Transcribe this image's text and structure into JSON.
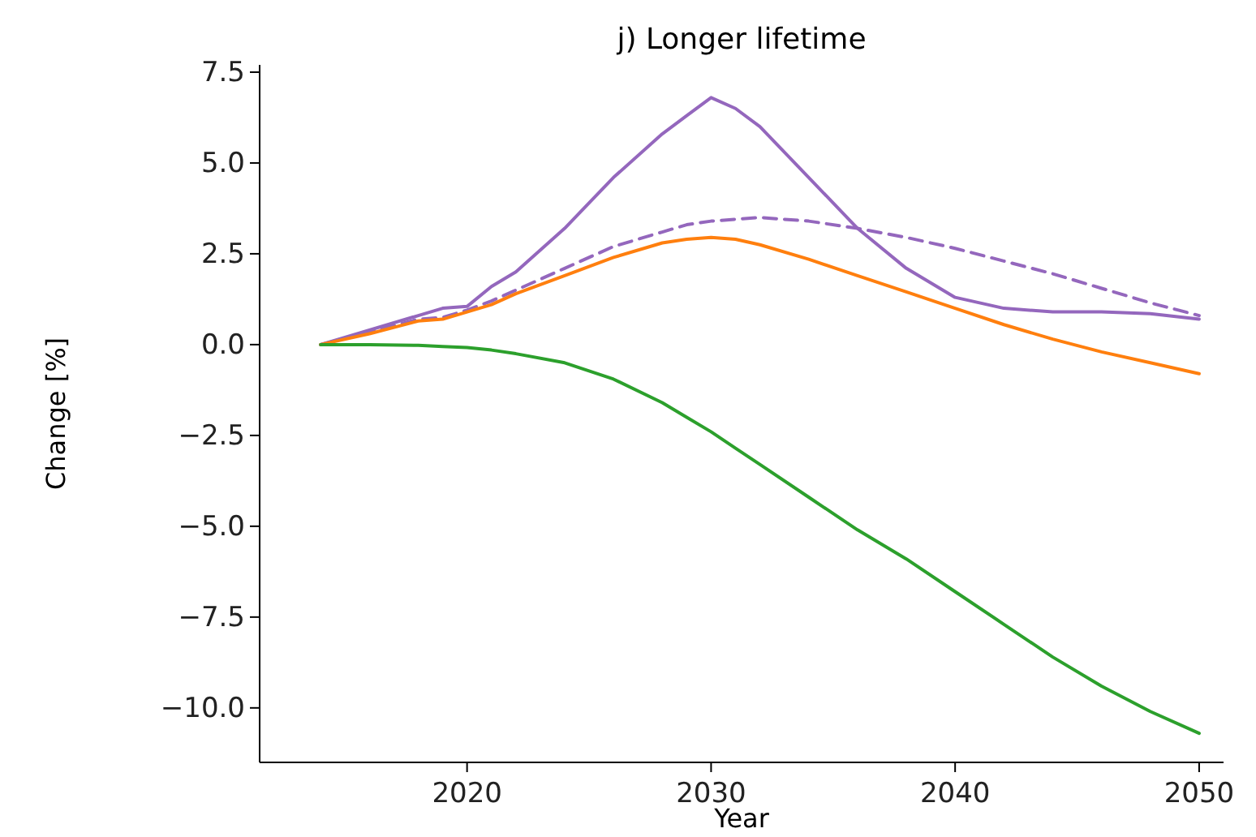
{
  "chart_data": {
    "type": "line",
    "title": "j) Longer lifetime",
    "xlabel": "Year",
    "ylabel": "Change [%]",
    "xlim": [
      2011.5,
      2051
    ],
    "ylim": [
      -11.5,
      7.7
    ],
    "xticks": [
      2020,
      2030,
      2040,
      2050
    ],
    "yticks": [
      {
        "value": 7.5,
        "label": "7.5"
      },
      {
        "value": 5,
        "label": "5.0"
      },
      {
        "value": 2.5,
        "label": "2.5"
      },
      {
        "value": 0,
        "label": "0.0"
      },
      {
        "value": -2.5,
        "label": "−2.5"
      },
      {
        "value": -5,
        "label": "−5.0"
      },
      {
        "value": -7.5,
        "label": "−7.5"
      },
      {
        "value": -10,
        "label": "−10.0"
      }
    ],
    "grid": false,
    "x": [
      2014,
      2016,
      2018,
      2019,
      2020,
      2021,
      2022,
      2024,
      2026,
      2028,
      2029,
      2030,
      2031,
      2032,
      2034,
      2036,
      2038,
      2040,
      2042,
      2044,
      2046,
      2048,
      2050
    ],
    "series": [
      {
        "color": "#9467bd",
        "line_style": "solid",
        "values": [
          0,
          0.4,
          0.8,
          1.0,
          1.05,
          1.6,
          2.0,
          3.2,
          4.6,
          5.8,
          6.3,
          6.8,
          6.5,
          6.0,
          4.6,
          3.2,
          2.1,
          1.3,
          1.0,
          0.9,
          0.9,
          0.85,
          0.7
        ]
      },
      {
        "color": "#9467bd",
        "line_style": "dashed",
        "values": [
          0,
          0.35,
          0.7,
          0.75,
          0.95,
          1.2,
          1.5,
          2.1,
          2.7,
          3.1,
          3.3,
          3.4,
          3.45,
          3.5,
          3.4,
          3.2,
          2.95,
          2.65,
          2.3,
          1.95,
          1.55,
          1.15,
          0.8
        ]
      },
      {
        "color": "#ff7f0e",
        "line_style": "solid",
        "values": [
          0,
          0.3,
          0.65,
          0.7,
          0.9,
          1.1,
          1.4,
          1.9,
          2.4,
          2.8,
          2.9,
          2.95,
          2.9,
          2.75,
          2.35,
          1.9,
          1.45,
          1.0,
          0.55,
          0.15,
          -0.2,
          -0.5,
          -0.8
        ]
      },
      {
        "color": "#2ca02c",
        "line_style": "solid",
        "values": [
          0,
          0,
          -0.02,
          -0.05,
          -0.08,
          -0.15,
          -0.25,
          -0.5,
          -0.95,
          -1.6,
          -2.0,
          -2.4,
          -2.85,
          -3.3,
          -4.2,
          -5.1,
          -5.9,
          -6.8,
          -7.7,
          -8.6,
          -9.4,
          -10.1,
          -10.7
        ]
      }
    ]
  }
}
